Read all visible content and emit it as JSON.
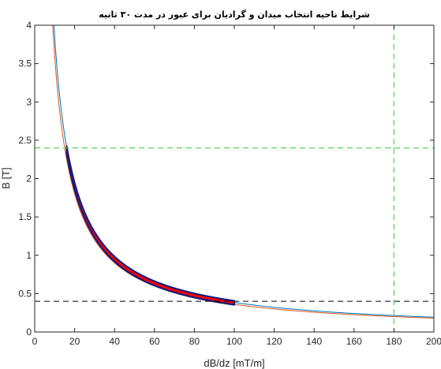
{
  "chart_data": {
    "type": "line",
    "title": "شرایط ناحیه انتخاب میدان و گرادیان برای عبور در مدت ۳۰ ثانیه",
    "xlabel": "dB/dz [mT/m]",
    "ylabel": "B [T]",
    "xlim": [
      0,
      200
    ],
    "ylim": [
      0,
      4
    ],
    "x_ticks": [
      "0",
      "20",
      "40",
      "60",
      "80",
      "100",
      "120",
      "140",
      "160",
      "180",
      "200"
    ],
    "y_ticks": [
      "0",
      "0.5",
      "1",
      "1.5",
      "2",
      "2.5",
      "3",
      "3.5",
      "4"
    ],
    "grid": false,
    "series": [
      {
        "style": "solid curve",
        "color": "#0072BD",
        "k": 38.5,
        "x_range": [
          9.6,
          200
        ]
      },
      {
        "style": "solid curve",
        "color": "#D95319",
        "k": 36.0,
        "x_range": [
          9.0,
          200
        ]
      },
      {
        "style": "thick band",
        "color": "#FF0000",
        "edge_color": "#1a1a7a",
        "k": 38.0,
        "half_width": 0.035,
        "x_range": [
          16,
          100
        ]
      }
    ],
    "reference_lines": [
      {
        "orientation": "horizontal",
        "value": 2.4,
        "color": "#33CC33",
        "style": "dashed"
      },
      {
        "orientation": "horizontal",
        "value": 0.4,
        "color": "#000000",
        "style": "dashed"
      },
      {
        "orientation": "vertical",
        "value": 180,
        "color": "#33CC33",
        "style": "dashed"
      }
    ]
  }
}
